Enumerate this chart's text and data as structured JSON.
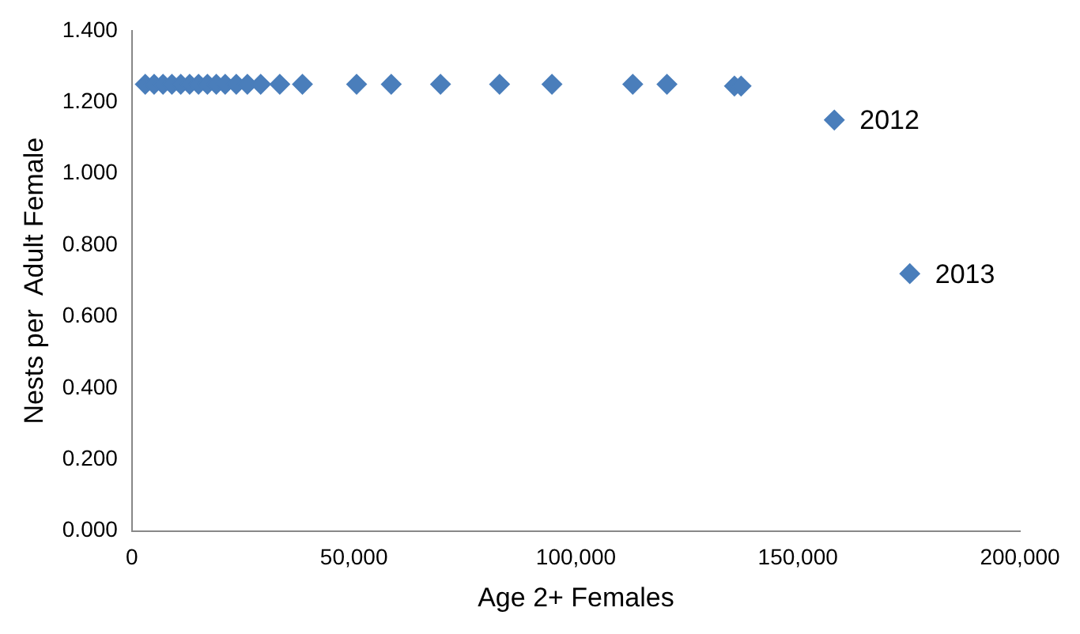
{
  "chart_data": {
    "type": "scatter",
    "xlabel": "Age 2+ Females",
    "ylabel": "Nests per  Adult Female",
    "x": [
      3000,
      5000,
      7000,
      9000,
      11000,
      13000,
      15000,
      17000,
      19000,
      21000,
      23500,
      26000,
      29000,
      33300,
      38400,
      50600,
      58400,
      69500,
      82800,
      94600,
      112800,
      120500,
      135700,
      137200,
      158200,
      175200
    ],
    "series": [
      {
        "color": "#4a7ebb",
        "values": [
          1.25,
          1.25,
          1.25,
          1.25,
          1.25,
          1.25,
          1.25,
          1.25,
          1.25,
          1.25,
          1.25,
          1.25,
          1.25,
          1.25,
          1.25,
          1.25,
          1.25,
          1.25,
          1.25,
          1.25,
          1.25,
          1.25,
          1.245,
          1.245,
          1.15,
          0.72
        ]
      }
    ],
    "annotations": [
      {
        "text": "2012",
        "x": 158200,
        "y": 1.15
      },
      {
        "text": "2013",
        "x": 175200,
        "y": 0.72
      }
    ],
    "marker": "diamond",
    "grid": false,
    "legend": false,
    "xlim": [
      0,
      200000
    ],
    "xticks": [
      {
        "value": 0,
        "label": "0"
      },
      {
        "value": 50000,
        "label": "50,000"
      },
      {
        "value": 100000,
        "label": "100,000"
      },
      {
        "value": 150000,
        "label": "150,000"
      },
      {
        "value": 200000,
        "label": "200,000"
      }
    ],
    "ylim": [
      0,
      1.4
    ],
    "yticks": [
      {
        "value": 0,
        "label": "0.000"
      },
      {
        "value": 0.2,
        "label": "0.200"
      },
      {
        "value": 0.4,
        "label": "0.400"
      },
      {
        "value": 0.6,
        "label": "0.600"
      },
      {
        "value": 0.8,
        "label": "0.800"
      },
      {
        "value": 1,
        "label": "1.000"
      },
      {
        "value": 1.2,
        "label": "1.200"
      },
      {
        "value": 1.4,
        "label": "1.400"
      }
    ]
  }
}
